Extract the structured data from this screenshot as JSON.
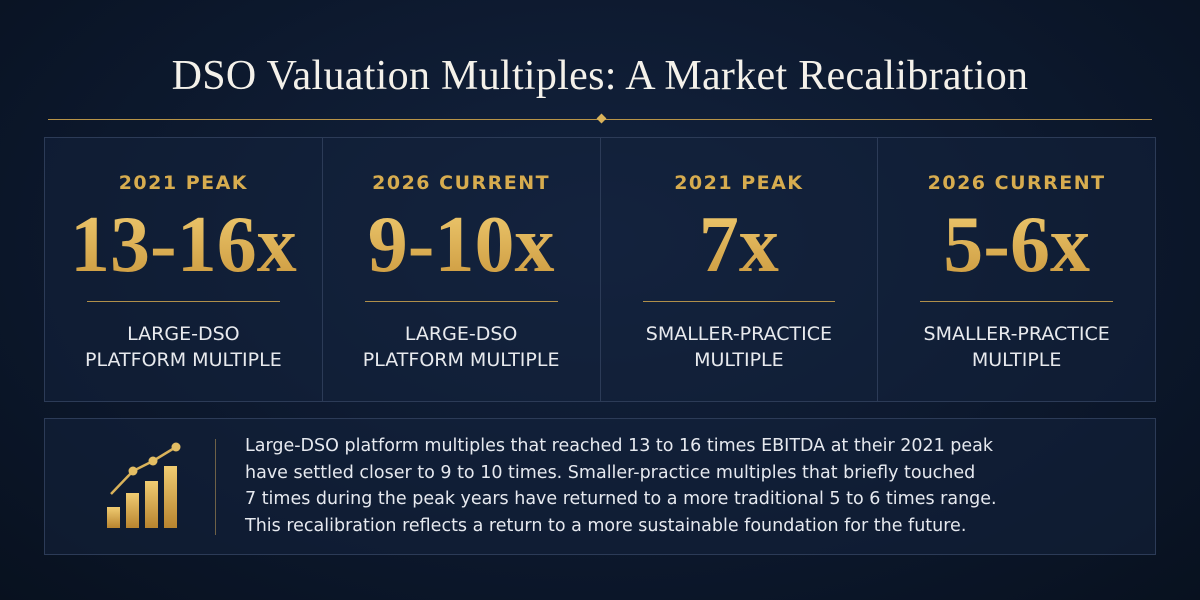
{
  "title": "DSO Valuation Multiples: A Market Recalibration",
  "cards": [
    {
      "period": "2021 PEAK",
      "multiple": "13-16x",
      "label_lines": [
        "LARGE-DSO",
        "PLATFORM MULTIPLE"
      ]
    },
    {
      "period": "2026 CURRENT",
      "multiple": "9-10x",
      "label_lines": [
        "LARGE-DSO",
        "PLATFORM MULTIPLE"
      ]
    },
    {
      "period": "2021 PEAK",
      "multiple": "7x",
      "label_lines": [
        "SMALLER-PRACTICE",
        "MULTIPLE"
      ]
    },
    {
      "period": "2026 CURRENT",
      "multiple": "5-6x",
      "label_lines": [
        "SMALLER-PRACTICE",
        "MULTIPLE"
      ]
    }
  ],
  "summary_lines": [
    "Large-DSO platform multiples that reached 13 to 16 times EBITDA at their 2021 peak",
    "have settled closer to 9 to 10 times. Smaller-practice multiples that briefly touched",
    "7 times during the peak years have returned to a more traditional 5 to 6 times range.",
    "This recalibration reflects a return to a more sustainable foundation for the future."
  ]
}
